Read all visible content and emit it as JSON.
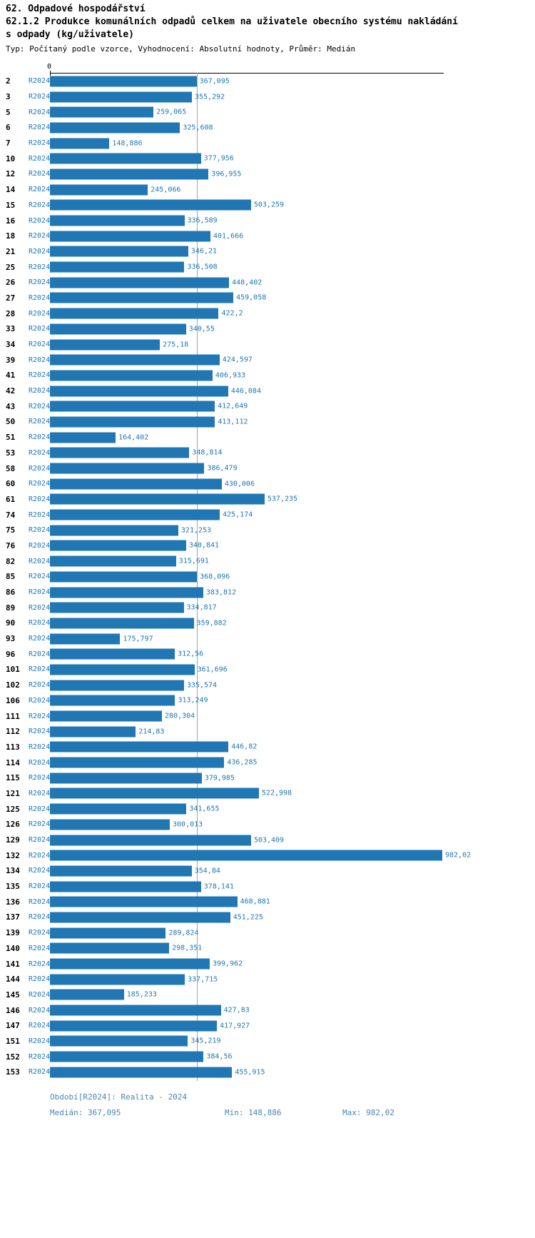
{
  "header": {
    "title": "62. Odpadové hospodářství",
    "subtitle_line1": "62.1.2 Produkce komunálních odpadů celkem na uživatele obecního systému nakládání",
    "subtitle_line2": "s odpady (kg/uživatele)",
    "meta": "Typ: Počítaný podle vzorce, Vyhodnocení: Absolutní hodnoty, Průměr: Medián"
  },
  "axis": {
    "zero_label": "0"
  },
  "chart_data": {
    "type": "bar",
    "orientation": "horizontal",
    "title": "62.1.2 Produkce komunálních odpadů celkem na uživatele obecního systému nakládání s odpady (kg/uživatele)",
    "series_name": "R2024",
    "xlim": [
      0,
      982.02
    ],
    "median": 367.095,
    "min": 148.886,
    "max": 982.02,
    "bar_color": "#2077b4",
    "grid": "median-line-only",
    "legend_position": "none",
    "categories": [
      "2",
      "3",
      "5",
      "6",
      "7",
      "10",
      "12",
      "14",
      "15",
      "16",
      "18",
      "21",
      "25",
      "26",
      "27",
      "28",
      "33",
      "34",
      "39",
      "41",
      "42",
      "43",
      "50",
      "51",
      "53",
      "58",
      "60",
      "61",
      "74",
      "75",
      "76",
      "82",
      "85",
      "86",
      "89",
      "90",
      "93",
      "96",
      "101",
      "102",
      "106",
      "111",
      "112",
      "113",
      "114",
      "115",
      "121",
      "125",
      "126",
      "129",
      "132",
      "134",
      "135",
      "136",
      "137",
      "139",
      "140",
      "141",
      "144",
      "145",
      "146",
      "147",
      "151",
      "152",
      "153"
    ],
    "values": [
      367.095,
      355.292,
      259.065,
      325.608,
      148.886,
      377.956,
      396.955,
      245.066,
      503.259,
      336.589,
      401.666,
      346.21,
      336.508,
      448.402,
      459.058,
      422.2,
      340.55,
      275.18,
      424.597,
      406.933,
      446.084,
      412.649,
      413.112,
      164.402,
      348.814,
      386.479,
      430.006,
      537.235,
      425.174,
      321.253,
      340.841,
      315.691,
      368.096,
      383.812,
      334.817,
      359.882,
      175.797,
      312.56,
      361.696,
      335.574,
      313.249,
      280.304,
      214.83,
      446.82,
      436.285,
      379.985,
      522.998,
      341.655,
      300.013,
      503.409,
      982.02,
      354.84,
      378.141,
      468.881,
      451.225,
      289.824,
      298.351,
      399.962,
      337.715,
      185.233,
      427.83,
      417.927,
      345.219,
      384.56,
      455.915
    ],
    "value_labels": [
      "367,095",
      "355,292",
      "259,065",
      "325,608",
      "148,886",
      "377,956",
      "396,955",
      "245,066",
      "503,259",
      "336,589",
      "401,666",
      "346,21",
      "336,508",
      "448,402",
      "459,058",
      "422,2",
      "340,55",
      "275,18",
      "424,597",
      "406,933",
      "446,084",
      "412,649",
      "413,112",
      "164,402",
      "348,814",
      "386,479",
      "430,006",
      "537,235",
      "425,174",
      "321,253",
      "340,841",
      "315,691",
      "368,096",
      "383,812",
      "334,817",
      "359,882",
      "175,797",
      "312,56",
      "361,696",
      "335,574",
      "313,249",
      "280,304",
      "214,83",
      "446,82",
      "436,285",
      "379,985",
      "522,998",
      "341,655",
      "300,013",
      "503,409",
      "982,02",
      "354,84",
      "378,141",
      "468,881",
      "451,225",
      "289,824",
      "298,351",
      "399,962",
      "337,715",
      "185,233",
      "427,83",
      "417,927",
      "345,219",
      "384,56",
      "455,915"
    ]
  },
  "footer": {
    "period": "Období[R2024]: Realita - 2024",
    "median_stat": "Medián: 367,095",
    "min_stat": "Min: 148,886",
    "max_stat": "Max: 982,02"
  },
  "colors": {
    "bar": "#2077b4",
    "value_label": "#1f77b4",
    "series_label": "#1f77b4",
    "footer_text": "#4c86b4",
    "median_line": "#9aa6b0"
  }
}
